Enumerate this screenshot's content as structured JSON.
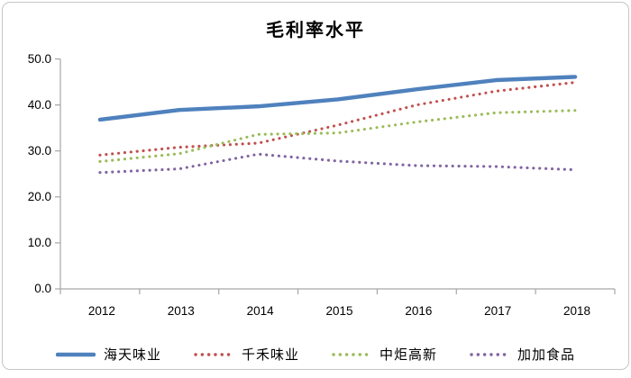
{
  "window": {
    "background": "#ffffff",
    "frame_border_color": "#c6c6c6"
  },
  "chart_data": {
    "type": "line",
    "title": "毛利率水平",
    "categories": [
      "2012",
      "2013",
      "2014",
      "2015",
      "2016",
      "2017",
      "2018"
    ],
    "series": [
      {
        "name": "海天味业",
        "color": "#4F81BD",
        "line_style": "solid",
        "values": [
          36.8,
          38.9,
          39.7,
          41.2,
          43.4,
          45.4,
          46.1
        ]
      },
      {
        "name": "千禾味业",
        "color": "#C0504D",
        "line_style": "dotted",
        "values": [
          29.1,
          30.8,
          31.7,
          35.6,
          40.0,
          43.0,
          44.9
        ]
      },
      {
        "name": "中炬高新",
        "color": "#9BBB59",
        "line_style": "dotted",
        "values": [
          27.7,
          29.4,
          33.6,
          33.9,
          36.3,
          38.3,
          38.8
        ]
      },
      {
        "name": "加加食品",
        "color": "#8064A2",
        "line_style": "dotted",
        "values": [
          25.3,
          26.1,
          29.3,
          27.8,
          26.8,
          26.6,
          25.9
        ]
      }
    ],
    "xlabel": "",
    "ylabel": "",
    "ylim": [
      0,
      50
    ],
    "ytick_step": 10,
    "ytick_labels": [
      "0.0",
      "10.0",
      "20.0",
      "30.0",
      "40.0",
      "50.0"
    ],
    "grid": false,
    "legend_position": "bottom",
    "axis_color": "#A6A6A6",
    "text_color": "#000000"
  }
}
